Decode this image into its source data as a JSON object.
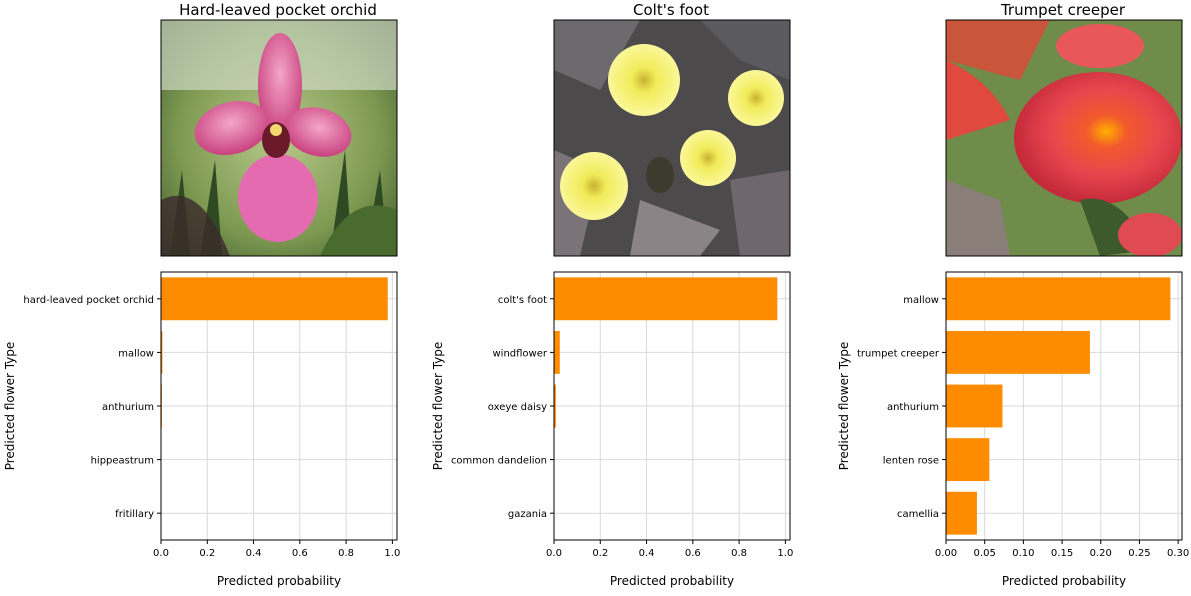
{
  "chart_data": [
    {
      "type": "bar",
      "title": "Hard-leaved pocket orchid",
      "image_icon": "orchid-photo",
      "colors": {
        "bar": "#ff8c00"
      },
      "categories": [
        "hard-leaved pocket orchid",
        "mallow",
        "anthurium",
        "hippeastrum",
        "fritillary"
      ],
      "values": [
        0.98,
        0.006,
        0.004,
        0.0,
        0.0
      ],
      "xlabel": "Predicted probability",
      "ylabel": "Predicted flower Type",
      "xlim": [
        0,
        1.02
      ],
      "xticks": [
        0.0,
        0.2,
        0.4,
        0.6,
        0.8,
        1.0
      ],
      "xtick_labels": [
        "0.0",
        "0.2",
        "0.4",
        "0.6",
        "0.8",
        "1.0"
      ],
      "grid": true
    },
    {
      "type": "bar",
      "title": "Colt's foot",
      "image_icon": "coltsfoot-photo",
      "colors": {
        "bar": "#ff8c00"
      },
      "categories": [
        "colt's foot",
        "windflower",
        "oxeye daisy",
        "common dandelion",
        "gazania"
      ],
      "values": [
        0.965,
        0.025,
        0.008,
        0.0,
        0.0
      ],
      "xlabel": "Predicted probability",
      "ylabel": "Predicted flower Type",
      "xlim": [
        0,
        1.02
      ],
      "xticks": [
        0.0,
        0.2,
        0.4,
        0.6,
        0.8,
        1.0
      ],
      "xtick_labels": [
        "0.0",
        "0.2",
        "0.4",
        "0.6",
        "0.8",
        "1.0"
      ],
      "grid": true
    },
    {
      "type": "bar",
      "title": "Trumpet creeper",
      "image_icon": "trumpet-creeper-photo",
      "colors": {
        "bar": "#ff8c00"
      },
      "categories": [
        "mallow",
        "trumpet creeper",
        "anthurium",
        "lenten rose",
        "camellia"
      ],
      "values": [
        0.29,
        0.186,
        0.073,
        0.056,
        0.04
      ],
      "xlabel": "Predicted probability",
      "ylabel": "Predicted flower Type",
      "xlim": [
        0,
        0.305
      ],
      "xticks": [
        0.0,
        0.05,
        0.1,
        0.15,
        0.2,
        0.25,
        0.3
      ],
      "xtick_labels": [
        "0.00",
        "0.05",
        "0.10",
        "0.15",
        "0.20",
        "0.25",
        "0.30"
      ],
      "grid": true
    }
  ]
}
